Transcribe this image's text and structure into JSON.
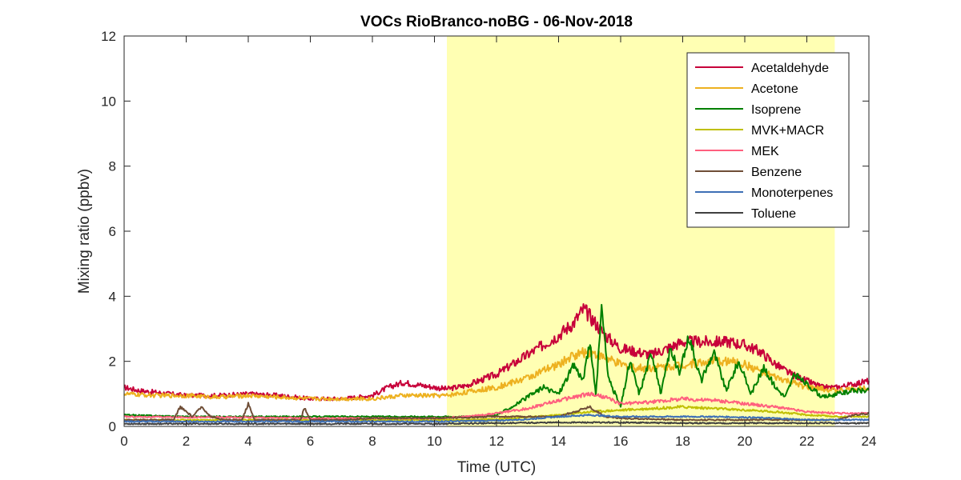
{
  "chart_data": {
    "type": "line",
    "title": "VOCs RioBranco-noBG - 06-Nov-2018",
    "xlabel": "Time (UTC)",
    "ylabel": "Mixing ratio (ppbv)",
    "xlim": [
      0,
      24
    ],
    "ylim": [
      0,
      12
    ],
    "xticks": [
      "0",
      "2",
      "4",
      "6",
      "8",
      "10",
      "12",
      "14",
      "16",
      "18",
      "20",
      "22",
      "24"
    ],
    "yticks": [
      "0",
      "2",
      "4",
      "6",
      "8",
      "10",
      "12"
    ],
    "grid": false,
    "legend_position": "top-right",
    "daytime_shading": {
      "start": 10.4,
      "end": 22.9,
      "color": "#ffffb3"
    },
    "series": [
      {
        "name": "Acetaldehyde",
        "color": "#c7003a",
        "x": [
          0,
          0.5,
          1,
          1.5,
          2,
          3,
          4,
          5,
          6,
          7,
          8,
          8.5,
          9,
          10,
          10.4,
          11,
          12,
          12.5,
          13,
          13.5,
          14,
          14.5,
          14.8,
          15,
          15.5,
          16,
          16.5,
          17,
          17.5,
          18,
          18.5,
          19,
          19.5,
          20,
          20.5,
          21,
          21.5,
          22,
          22.5,
          23,
          23.5,
          24
        ],
        "y": [
          1.2,
          1.1,
          1.05,
          1.0,
          0.95,
          0.95,
          1.0,
          0.95,
          0.85,
          0.85,
          0.95,
          1.2,
          1.35,
          1.2,
          1.15,
          1.25,
          1.6,
          1.9,
          2.2,
          2.5,
          2.8,
          3.2,
          3.6,
          3.4,
          2.8,
          2.4,
          2.3,
          2.2,
          2.4,
          2.6,
          2.6,
          2.6,
          2.6,
          2.5,
          2.3,
          1.9,
          1.6,
          1.4,
          1.2,
          1.2,
          1.3,
          1.4
        ]
      },
      {
        "name": "Acetone",
        "color": "#edb120",
        "x": [
          0,
          1,
          2,
          3,
          4,
          5,
          6,
          7,
          8,
          9,
          10,
          10.4,
          11,
          12,
          13,
          14,
          14.5,
          15,
          15.5,
          16,
          16.5,
          17,
          18,
          19,
          19.5,
          20,
          20.5,
          21,
          22,
          23,
          24
        ],
        "y": [
          1.0,
          0.95,
          0.95,
          0.9,
          0.95,
          0.9,
          0.85,
          0.85,
          0.85,
          0.95,
          0.95,
          0.95,
          1.05,
          1.2,
          1.5,
          1.9,
          2.2,
          2.3,
          2.1,
          1.9,
          1.8,
          1.8,
          1.9,
          2.0,
          2.0,
          1.9,
          1.7,
          1.5,
          1.2,
          1.1,
          1.2
        ]
      },
      {
        "name": "Isoprene",
        "color": "#008000",
        "x": [
          0,
          2,
          4,
          6,
          8,
          10,
          11,
          12,
          12.5,
          13,
          13.5,
          14,
          14.5,
          14.8,
          15,
          15.2,
          15.4,
          15.6,
          16,
          16.3,
          16.6,
          17,
          17.3,
          17.6,
          17.9,
          18.2,
          18.6,
          19,
          19.4,
          19.8,
          20.2,
          20.6,
          21,
          21.3,
          21.6,
          22,
          22.5,
          23,
          23.5,
          24
        ],
        "y": [
          0.35,
          0.3,
          0.3,
          0.3,
          0.3,
          0.3,
          0.3,
          0.35,
          0.6,
          0.9,
          1.2,
          1.0,
          1.9,
          1.4,
          2.6,
          1.0,
          3.7,
          1.5,
          0.6,
          2.0,
          1.0,
          2.3,
          1.0,
          2.4,
          1.6,
          2.8,
          1.4,
          2.3,
          1.1,
          2.0,
          1.0,
          1.8,
          1.2,
          0.9,
          1.6,
          1.3,
          0.9,
          1.0,
          1.1,
          1.1
        ]
      },
      {
        "name": "MVK+MACR",
        "color": "#bfbf00",
        "x": [
          0,
          4,
          8,
          10,
          11,
          12,
          13,
          14,
          15,
          16,
          17,
          18,
          19,
          20,
          21,
          22,
          23,
          24
        ],
        "y": [
          0.2,
          0.2,
          0.2,
          0.2,
          0.2,
          0.22,
          0.28,
          0.35,
          0.45,
          0.5,
          0.55,
          0.6,
          0.55,
          0.5,
          0.45,
          0.35,
          0.3,
          0.3
        ]
      },
      {
        "name": "MEK",
        "color": "#ff5f7e",
        "x": [
          0,
          2,
          4,
          6,
          8,
          10,
          11,
          12,
          13,
          14,
          15,
          15.5,
          16,
          17,
          18,
          19,
          20,
          21,
          22,
          23,
          24
        ],
        "y": [
          0.3,
          0.28,
          0.28,
          0.25,
          0.25,
          0.25,
          0.3,
          0.4,
          0.55,
          0.8,
          1.0,
          0.9,
          0.7,
          0.75,
          0.85,
          0.8,
          0.7,
          0.6,
          0.45,
          0.4,
          0.4
        ]
      },
      {
        "name": "Benzene",
        "color": "#6f4e37",
        "x": [
          0,
          1,
          1.6,
          1.8,
          2.2,
          2.5,
          2.8,
          3.2,
          3.8,
          4,
          4.2,
          5,
          5.7,
          5.8,
          6,
          7,
          8,
          10,
          12,
          14,
          15,
          15.5,
          16,
          18,
          20,
          22,
          23,
          23.5,
          24
        ],
        "y": [
          0.2,
          0.2,
          0.2,
          0.6,
          0.3,
          0.6,
          0.3,
          0.2,
          0.2,
          0.7,
          0.2,
          0.2,
          0.2,
          0.6,
          0.2,
          0.2,
          0.25,
          0.25,
          0.3,
          0.3,
          0.6,
          0.3,
          0.25,
          0.2,
          0.2,
          0.2,
          0.2,
          0.35,
          0.4
        ]
      },
      {
        "name": "Monoterpenes",
        "color": "#3d6fb6",
        "x": [
          0,
          4,
          8,
          10,
          12,
          13,
          14,
          15,
          16,
          17,
          18,
          19,
          20,
          21,
          22,
          23,
          24
        ],
        "y": [
          0.15,
          0.15,
          0.15,
          0.15,
          0.18,
          0.22,
          0.3,
          0.35,
          0.3,
          0.3,
          0.3,
          0.3,
          0.28,
          0.25,
          0.2,
          0.2,
          0.2
        ]
      },
      {
        "name": "Toluene",
        "color": "#404040",
        "x": [
          0,
          4,
          8,
          10,
          12,
          14,
          16,
          18,
          20,
          22,
          24
        ],
        "y": [
          0.08,
          0.08,
          0.08,
          0.08,
          0.1,
          0.12,
          0.12,
          0.1,
          0.1,
          0.1,
          0.1
        ]
      }
    ]
  }
}
